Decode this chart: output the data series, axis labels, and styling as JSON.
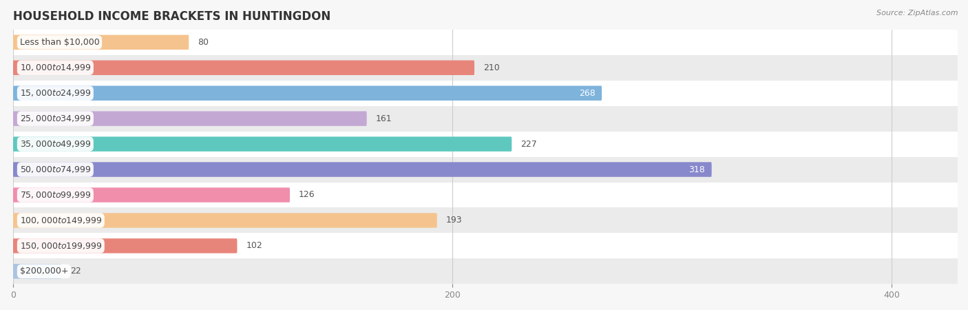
{
  "title": "HOUSEHOLD INCOME BRACKETS IN HUNTINGDON",
  "source": "Source: ZipAtlas.com",
  "categories": [
    "Less than $10,000",
    "$10,000 to $14,999",
    "$15,000 to $24,999",
    "$25,000 to $34,999",
    "$35,000 to $49,999",
    "$50,000 to $74,999",
    "$75,000 to $99,999",
    "$100,000 to $149,999",
    "$150,000 to $199,999",
    "$200,000+"
  ],
  "values": [
    80,
    210,
    268,
    161,
    227,
    318,
    126,
    193,
    102,
    22
  ],
  "bar_colors": [
    "#f5c48e",
    "#e8857a",
    "#7eb3dc",
    "#c4a8d4",
    "#5ec8be",
    "#8888cc",
    "#f08eac",
    "#f5c48e",
    "#e8857a",
    "#aac4e0"
  ],
  "xlim": [
    0,
    430
  ],
  "xticks": [
    0,
    200,
    400
  ],
  "bar_height": 0.58,
  "background_color": "#f7f7f7",
  "row_bg_even": "#ffffff",
  "row_bg_odd": "#ebebeb",
  "title_fontsize": 12,
  "source_fontsize": 8,
  "value_label_inside_color": "#ffffff",
  "value_label_outside_color": "#555555",
  "inside_threshold": 265,
  "label_bg_color": "#ffffff",
  "label_text_color": "#444444",
  "label_fontsize": 9,
  "value_fontsize": 9,
  "grid_color": "#cccccc",
  "tick_color": "#888888"
}
